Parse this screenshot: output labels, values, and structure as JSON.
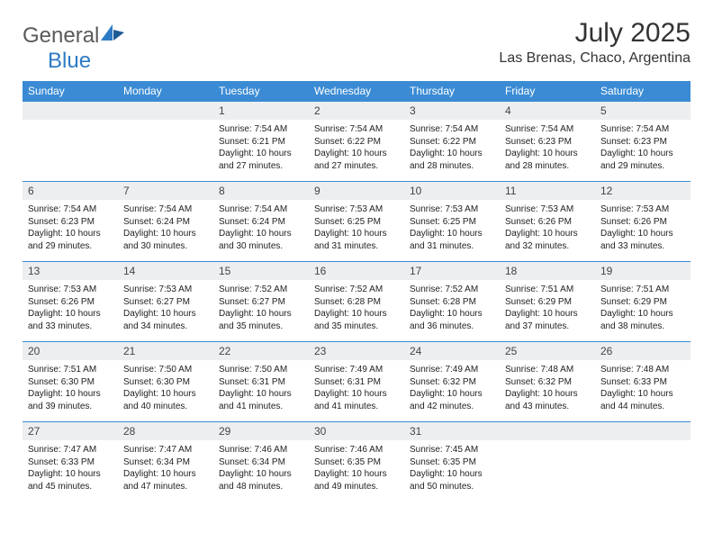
{
  "brand": {
    "part1": "General",
    "part2": "Blue"
  },
  "title": "July 2025",
  "location": "Las Brenas, Chaco, Argentina",
  "colors": {
    "header_bg": "#3b8bd4",
    "header_fg": "#ffffff",
    "daynum_bg": "#eceeef",
    "rule": "#3b8bd4",
    "logo_gray": "#5a5a5a",
    "logo_blue": "#2d7bc4"
  },
  "weekday_labels": [
    "Sunday",
    "Monday",
    "Tuesday",
    "Wednesday",
    "Thursday",
    "Friday",
    "Saturday"
  ],
  "weeks": [
    {
      "nums": [
        "",
        "",
        "1",
        "2",
        "3",
        "4",
        "5"
      ],
      "cells": [
        null,
        null,
        {
          "sunrise": "7:54 AM",
          "sunset": "6:21 PM",
          "daylight": "10 hours and 27 minutes."
        },
        {
          "sunrise": "7:54 AM",
          "sunset": "6:22 PM",
          "daylight": "10 hours and 27 minutes."
        },
        {
          "sunrise": "7:54 AM",
          "sunset": "6:22 PM",
          "daylight": "10 hours and 28 minutes."
        },
        {
          "sunrise": "7:54 AM",
          "sunset": "6:23 PM",
          "daylight": "10 hours and 28 minutes."
        },
        {
          "sunrise": "7:54 AM",
          "sunset": "6:23 PM",
          "daylight": "10 hours and 29 minutes."
        }
      ]
    },
    {
      "nums": [
        "6",
        "7",
        "8",
        "9",
        "10",
        "11",
        "12"
      ],
      "cells": [
        {
          "sunrise": "7:54 AM",
          "sunset": "6:23 PM",
          "daylight": "10 hours and 29 minutes."
        },
        {
          "sunrise": "7:54 AM",
          "sunset": "6:24 PM",
          "daylight": "10 hours and 30 minutes."
        },
        {
          "sunrise": "7:54 AM",
          "sunset": "6:24 PM",
          "daylight": "10 hours and 30 minutes."
        },
        {
          "sunrise": "7:53 AM",
          "sunset": "6:25 PM",
          "daylight": "10 hours and 31 minutes."
        },
        {
          "sunrise": "7:53 AM",
          "sunset": "6:25 PM",
          "daylight": "10 hours and 31 minutes."
        },
        {
          "sunrise": "7:53 AM",
          "sunset": "6:26 PM",
          "daylight": "10 hours and 32 minutes."
        },
        {
          "sunrise": "7:53 AM",
          "sunset": "6:26 PM",
          "daylight": "10 hours and 33 minutes."
        }
      ]
    },
    {
      "nums": [
        "13",
        "14",
        "15",
        "16",
        "17",
        "18",
        "19"
      ],
      "cells": [
        {
          "sunrise": "7:53 AM",
          "sunset": "6:26 PM",
          "daylight": "10 hours and 33 minutes."
        },
        {
          "sunrise": "7:53 AM",
          "sunset": "6:27 PM",
          "daylight": "10 hours and 34 minutes."
        },
        {
          "sunrise": "7:52 AM",
          "sunset": "6:27 PM",
          "daylight": "10 hours and 35 minutes."
        },
        {
          "sunrise": "7:52 AM",
          "sunset": "6:28 PM",
          "daylight": "10 hours and 35 minutes."
        },
        {
          "sunrise": "7:52 AM",
          "sunset": "6:28 PM",
          "daylight": "10 hours and 36 minutes."
        },
        {
          "sunrise": "7:51 AM",
          "sunset": "6:29 PM",
          "daylight": "10 hours and 37 minutes."
        },
        {
          "sunrise": "7:51 AM",
          "sunset": "6:29 PM",
          "daylight": "10 hours and 38 minutes."
        }
      ]
    },
    {
      "nums": [
        "20",
        "21",
        "22",
        "23",
        "24",
        "25",
        "26"
      ],
      "cells": [
        {
          "sunrise": "7:51 AM",
          "sunset": "6:30 PM",
          "daylight": "10 hours and 39 minutes."
        },
        {
          "sunrise": "7:50 AM",
          "sunset": "6:30 PM",
          "daylight": "10 hours and 40 minutes."
        },
        {
          "sunrise": "7:50 AM",
          "sunset": "6:31 PM",
          "daylight": "10 hours and 41 minutes."
        },
        {
          "sunrise": "7:49 AM",
          "sunset": "6:31 PM",
          "daylight": "10 hours and 41 minutes."
        },
        {
          "sunrise": "7:49 AM",
          "sunset": "6:32 PM",
          "daylight": "10 hours and 42 minutes."
        },
        {
          "sunrise": "7:48 AM",
          "sunset": "6:32 PM",
          "daylight": "10 hours and 43 minutes."
        },
        {
          "sunrise": "7:48 AM",
          "sunset": "6:33 PM",
          "daylight": "10 hours and 44 minutes."
        }
      ]
    },
    {
      "nums": [
        "27",
        "28",
        "29",
        "30",
        "31",
        "",
        ""
      ],
      "cells": [
        {
          "sunrise": "7:47 AM",
          "sunset": "6:33 PM",
          "daylight": "10 hours and 45 minutes."
        },
        {
          "sunrise": "7:47 AM",
          "sunset": "6:34 PM",
          "daylight": "10 hours and 47 minutes."
        },
        {
          "sunrise": "7:46 AM",
          "sunset": "6:34 PM",
          "daylight": "10 hours and 48 minutes."
        },
        {
          "sunrise": "7:46 AM",
          "sunset": "6:35 PM",
          "daylight": "10 hours and 49 minutes."
        },
        {
          "sunrise": "7:45 AM",
          "sunset": "6:35 PM",
          "daylight": "10 hours and 50 minutes."
        },
        null,
        null
      ]
    }
  ],
  "labels": {
    "sunrise_prefix": "Sunrise: ",
    "sunset_prefix": "Sunset: ",
    "daylight_prefix": "Daylight: "
  }
}
